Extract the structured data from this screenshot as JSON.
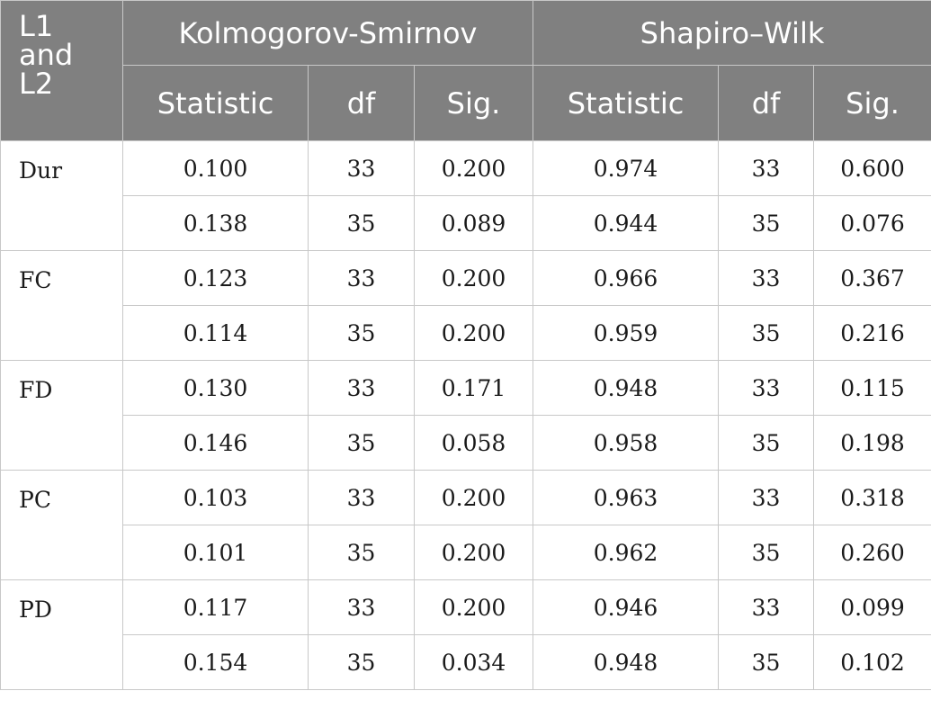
{
  "header": {
    "corner_line1": "L1",
    "corner_line2": "and",
    "corner_line3": "L2",
    "group_ks": "Kolmogorov-Smirnov",
    "group_sw": "Shapiro–Wilk",
    "sub": [
      "Statistic",
      "df",
      "Sig.",
      "Statistic",
      "df",
      "Sig."
    ]
  },
  "rows": [
    {
      "var": "Dur",
      "r1": [
        "0.100",
        "33",
        "0.200",
        "0.974",
        "33",
        "0.600"
      ],
      "r2": [
        "0.138",
        "35",
        "0.089",
        "0.944",
        "35",
        "0.076"
      ]
    },
    {
      "var": "FC",
      "r1": [
        "0.123",
        "33",
        "0.200",
        "0.966",
        "33",
        "0.367"
      ],
      "r2": [
        "0.114",
        "35",
        "0.200",
        "0.959",
        "35",
        "0.216"
      ]
    },
    {
      "var": "FD",
      "r1": [
        "0.130",
        "33",
        "0.171",
        "0.948",
        "33",
        "0.115"
      ],
      "r2": [
        "0.146",
        "35",
        "0.058",
        "0.958",
        "35",
        "0.198"
      ]
    },
    {
      "var": "PC",
      "r1": [
        "0.103",
        "33",
        "0.200",
        "0.963",
        "33",
        "0.318"
      ],
      "r2": [
        "0.101",
        "35",
        "0.200",
        "0.962",
        "35",
        "0.260"
      ]
    },
    {
      "var": "PD",
      "r1": [
        "0.117",
        "33",
        "0.200",
        "0.946",
        "33",
        "0.099"
      ],
      "r2": [
        "0.154",
        "35",
        "0.034",
        "0.948",
        "35",
        "0.102"
      ]
    }
  ],
  "colors": {
    "header_bg": "#808080",
    "header_text": "#ffffff",
    "border": "#c8c8c8"
  }
}
